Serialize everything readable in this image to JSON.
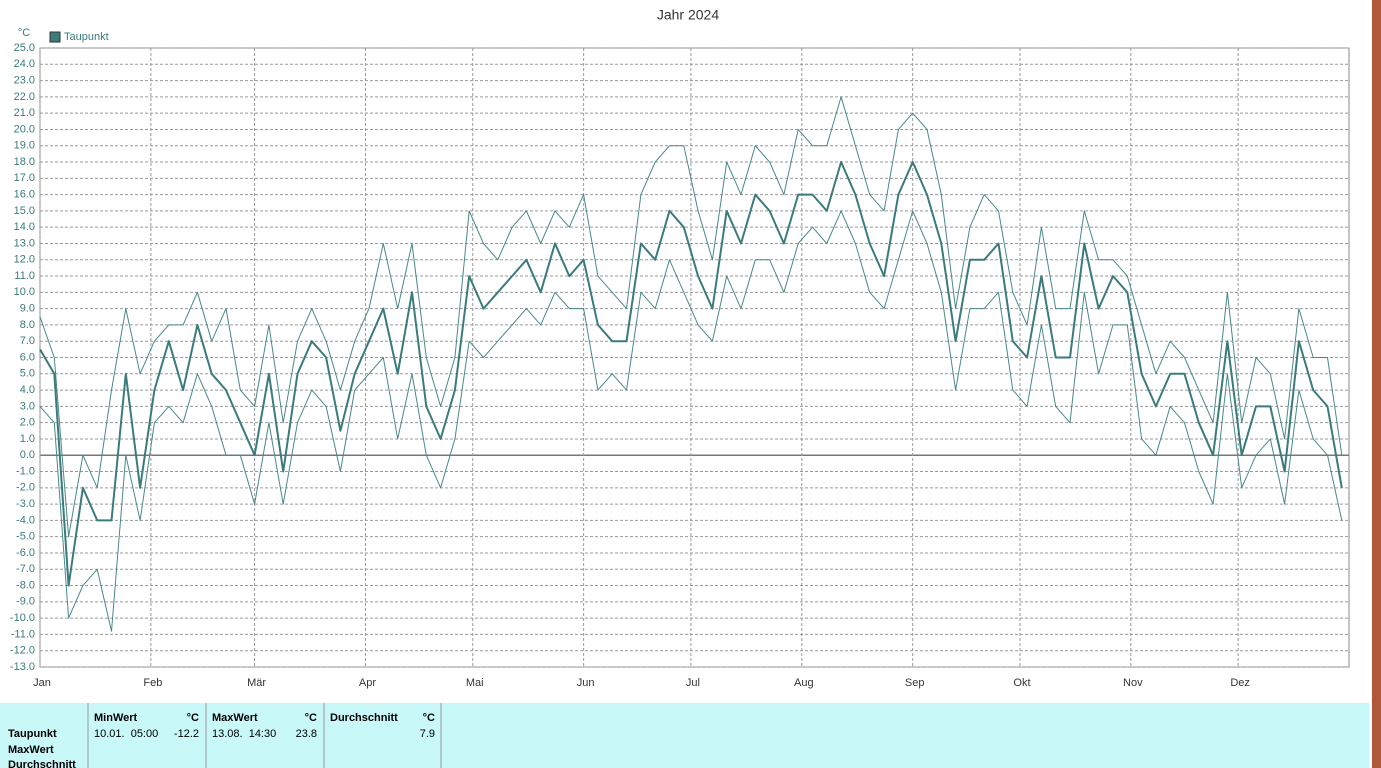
{
  "chart_data": {
    "type": "line",
    "title": "Jahr 2024",
    "y_label": "°C",
    "x": [
      1,
      5,
      9,
      13,
      17,
      21,
      25,
      29,
      33,
      37,
      41,
      45,
      49,
      53,
      57,
      61,
      65,
      69,
      73,
      77,
      81,
      85,
      89,
      93,
      97,
      101,
      105,
      109,
      113,
      117,
      121,
      125,
      129,
      133,
      137,
      141,
      145,
      149,
      153,
      157,
      161,
      165,
      169,
      173,
      177,
      181,
      185,
      189,
      193,
      197,
      201,
      205,
      209,
      213,
      217,
      221,
      225,
      229,
      233,
      237,
      241,
      245,
      249,
      253,
      257,
      261,
      265,
      269,
      273,
      277,
      281,
      285,
      289,
      293,
      297,
      301,
      305,
      309,
      313,
      317,
      321,
      325,
      329,
      333,
      337,
      341,
      345,
      349,
      353,
      357,
      361,
      365
    ],
    "series": [
      {
        "name": "Taupunkt",
        "color": "#3b7b7b",
        "width": 2,
        "values": [
          6.5,
          5,
          -8,
          -2,
          -4,
          -4,
          5,
          -2,
          4,
          7,
          4,
          8,
          5,
          4,
          2,
          0,
          5,
          -1,
          5,
          7,
          6,
          1.5,
          5,
          7,
          9,
          5,
          10,
          3,
          1,
          4,
          11,
          9,
          10,
          11,
          12,
          10,
          13,
          11,
          12,
          8,
          7,
          7,
          13,
          12,
          15,
          14,
          11,
          9,
          15,
          13,
          16,
          15,
          13,
          16,
          16,
          15,
          18,
          16,
          13,
          11,
          16,
          18,
          16,
          13,
          7,
          12,
          12,
          13,
          7,
          6,
          11,
          6,
          6,
          13,
          9,
          11,
          10,
          5,
          3,
          5,
          5,
          2,
          0,
          7,
          0,
          3,
          3,
          -1,
          7,
          4,
          3,
          -2
        ]
      },
      {
        "color": "#4a8888",
        "width": 1,
        "values": [
          3,
          2,
          -10,
          -8,
          -7,
          -10.8,
          0,
          -4,
          2,
          3,
          2,
          5,
          3,
          0,
          0,
          -3,
          2,
          -3,
          2,
          4,
          3,
          -1,
          4,
          5,
          6,
          1,
          5,
          0,
          -2,
          1,
          7,
          6,
          7,
          8,
          9,
          8,
          10,
          9,
          9,
          4,
          5,
          4,
          10,
          9,
          12,
          10,
          8,
          7,
          11,
          9,
          12,
          12,
          10,
          13,
          14,
          13,
          15,
          13,
          10,
          9,
          12,
          15,
          13,
          10,
          4,
          9,
          9,
          10,
          4,
          3,
          8,
          3,
          2,
          10,
          5,
          8,
          8,
          1,
          0,
          3,
          2,
          -1,
          -3,
          5,
          -2,
          0,
          1,
          -3,
          4,
          1,
          0,
          -4
        ]
      },
      {
        "color": "#4a8888",
        "width": 1,
        "values": [
          8.5,
          6,
          -5,
          0,
          -2,
          4,
          9,
          5,
          7,
          8,
          8,
          10,
          7,
          9,
          4,
          3,
          8,
          2,
          7,
          9,
          7,
          4,
          7,
          9,
          13,
          9,
          13,
          6,
          3,
          6,
          15,
          13,
          12,
          14,
          15,
          13,
          15,
          14,
          16,
          11,
          10,
          9,
          16,
          18,
          19,
          19,
          15,
          12,
          18,
          16,
          19,
          18,
          16,
          20,
          19,
          19,
          22,
          19,
          16,
          15,
          20,
          21,
          20,
          16,
          9,
          14,
          16,
          15,
          10,
          8,
          14,
          9,
          9,
          15,
          12,
          12,
          11,
          8,
          5,
          7,
          6,
          4,
          2,
          10,
          2,
          6,
          5,
          1,
          9,
          6,
          6,
          0
        ]
      }
    ],
    "xlim": [
      1,
      367
    ],
    "xticks": [
      {
        "value": 1,
        "label": "Jan"
      },
      {
        "value": 32,
        "label": "Feb"
      },
      {
        "value": 61,
        "label": "Mär"
      },
      {
        "value": 92,
        "label": "Apr"
      },
      {
        "value": 122,
        "label": "Mai"
      },
      {
        "value": 153,
        "label": "Jun"
      },
      {
        "value": 183,
        "label": "Jul"
      },
      {
        "value": 214,
        "label": "Aug"
      },
      {
        "value": 245,
        "label": "Sep"
      },
      {
        "value": 275,
        "label": "Okt"
      },
      {
        "value": 306,
        "label": "Nov"
      },
      {
        "value": 336,
        "label": "Dez"
      }
    ],
    "ylim": [
      -13,
      25
    ],
    "yticks": [
      {
        "value": 25,
        "label": "25.0"
      },
      {
        "value": 24,
        "label": "24.0"
      },
      {
        "value": 23,
        "label": "23.0"
      },
      {
        "value": 22,
        "label": "22.0"
      },
      {
        "value": 21,
        "label": "21.0"
      },
      {
        "value": 20,
        "label": "20.0"
      },
      {
        "value": 19,
        "label": "19.0"
      },
      {
        "value": 18,
        "label": "18.0"
      },
      {
        "value": 17,
        "label": "17.0"
      },
      {
        "value": 16,
        "label": "16.0"
      },
      {
        "value": 15,
        "label": "15.0"
      },
      {
        "value": 14,
        "label": "14.0"
      },
      {
        "value": 13,
        "label": "13.0"
      },
      {
        "value": 12,
        "label": "12.0"
      },
      {
        "value": 11,
        "label": "11.0"
      },
      {
        "value": 10,
        "label": "10.0"
      },
      {
        "value": 9,
        "label": "9.0"
      },
      {
        "value": 8,
        "label": "8.0"
      },
      {
        "value": 7,
        "label": "7.0"
      },
      {
        "value": 6,
        "label": "6.0"
      },
      {
        "value": 5,
        "label": "5.0"
      },
      {
        "value": 4,
        "label": "4.0"
      },
      {
        "value": 3,
        "label": "3.0"
      },
      {
        "value": 2,
        "label": "2.0"
      },
      {
        "value": 1,
        "label": "1.0"
      },
      {
        "value": 0,
        "label": "0.0"
      },
      {
        "value": -1,
        "label": "-1.0"
      },
      {
        "value": -2,
        "label": "-2.0"
      },
      {
        "value": -3,
        "label": "-3.0"
      },
      {
        "value": -4,
        "label": "-4.0"
      },
      {
        "value": -5,
        "label": "-5.0"
      },
      {
        "value": -6,
        "label": "-6.0"
      },
      {
        "value": -7,
        "label": "-7.0"
      },
      {
        "value": -8,
        "label": "-8.0"
      },
      {
        "value": -9,
        "label": "-9.0"
      },
      {
        "value": -10,
        "label": "-10.0"
      },
      {
        "value": -11,
        "label": "-11.0"
      },
      {
        "value": -12,
        "label": "-12.0"
      },
      {
        "value": -13,
        "label": "-13.0"
      }
    ],
    "grid": true,
    "legend": "top-left"
  },
  "table": {
    "row_labels": [
      "Taupunkt",
      "MaxWert",
      "Durchschnitt"
    ],
    "columns": [
      {
        "header": "MinWert",
        "unit": "°C",
        "time": "10.01.  05:00",
        "value": "-12.2"
      },
      {
        "header": "MaxWert",
        "unit": "°C",
        "time": "13.08.  14:30",
        "value": "23.8"
      },
      {
        "header": "Durchschnitt",
        "unit": "°C",
        "value": "7.9"
      }
    ]
  }
}
